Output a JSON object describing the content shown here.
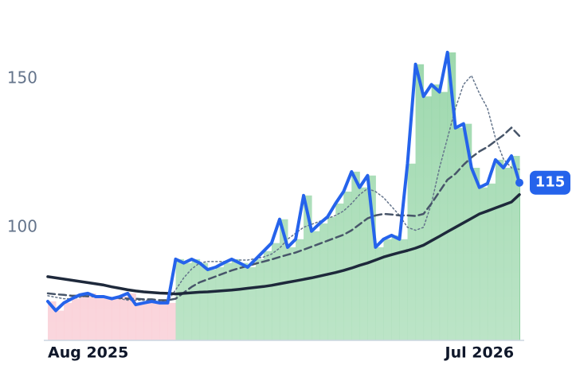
{
  "chart_data": {
    "type": "line",
    "categories": [
      "Aug 2025",
      null,
      null,
      null,
      null,
      null,
      null,
      null,
      null,
      null,
      null,
      null,
      null,
      null,
      null,
      null,
      null,
      null,
      null,
      null,
      null,
      null,
      null,
      null,
      null,
      null,
      null,
      null,
      null,
      null,
      null,
      null,
      null,
      null,
      null,
      null,
      null,
      null,
      null,
      null,
      null,
      null,
      null,
      null,
      null,
      null,
      null,
      null,
      null,
      null,
      null,
      null,
      null,
      null,
      "Jul 2026",
      null,
      null,
      null,
      null,
      null
    ],
    "series": [
      {
        "color": "#2563eb",
        "style": "solid",
        "width": 4,
        "values": [
          75.1,
          72,
          74.6,
          76,
          77.3,
          77.8,
          76.7,
          76.7,
          76,
          76.7,
          77.8,
          74,
          74.6,
          75.1,
          74.6,
          74.6,
          89.3,
          88,
          89.3,
          88,
          85.8,
          86.6,
          88,
          89.3,
          88,
          86.6,
          89.3,
          92,
          94.7,
          102.7,
          93.3,
          96,
          110.7,
          98.7,
          101.3,
          103.5,
          108,
          112,
          118.7,
          113.4,
          117.4,
          93.3,
          96,
          97.3,
          96,
          121.4,
          154.8,
          144,
          148,
          145.5,
          158.8,
          133.4,
          134.8,
          120,
          113.4,
          114.7,
          122.7,
          120,
          124,
          115
        ]
      },
      {
        "color": "#1e293b",
        "style": "solid",
        "width": 3.5,
        "values": [
          83.4,
          83,
          82.6,
          82.2,
          81.8,
          81.4,
          81,
          80.6,
          80,
          79.5,
          79,
          78.6,
          78.3,
          78.1,
          77.9,
          77.8,
          77.6,
          77.8,
          78,
          78.2,
          78.3,
          78.5,
          78.7,
          78.9,
          79.2,
          79.5,
          79.8,
          80.1,
          80.5,
          81,
          81.5,
          82,
          82.5,
          83,
          83.6,
          84.2,
          84.8,
          85.5,
          86.3,
          87.2,
          88,
          89,
          90,
          90.8,
          91.5,
          92.2,
          93,
          94,
          95.5,
          97,
          98.5,
          100,
          101.5,
          103,
          104.5,
          105.5,
          106.5,
          107.5,
          108.5,
          111
        ]
      },
      {
        "color": "#475569",
        "style": "dashed",
        "width": 2.5,
        "values": [
          77.8,
          77.5,
          77.3,
          77,
          77,
          76.8,
          76.8,
          76.5,
          76.3,
          76.3,
          76,
          76,
          75.8,
          75.8,
          75.5,
          75.5,
          76,
          78,
          80,
          81.5,
          82.5,
          83.5,
          84.5,
          85.5,
          86.3,
          87,
          87.8,
          88.5,
          89.2,
          90,
          90.8,
          91.5,
          92.5,
          93.5,
          94.5,
          95.5,
          96.5,
          97.5,
          99,
          101,
          103,
          104,
          104.5,
          104.3,
          104,
          104,
          103.8,
          104.5,
          108,
          112,
          116,
          118,
          121,
          123.5,
          125.5,
          127,
          129,
          131,
          133.5,
          130.7
        ]
      },
      {
        "color": "#64748b",
        "style": "dotted",
        "width": 1.5,
        "values": [
          77,
          76.5,
          76,
          76,
          76.5,
          77,
          76.8,
          76.5,
          76.3,
          76,
          75.5,
          75.5,
          75.5,
          75.3,
          75,
          75.2,
          79,
          83,
          86,
          88,
          88.5,
          88.5,
          88.5,
          88.8,
          89,
          89,
          89.5,
          90,
          91,
          93,
          96,
          98,
          100,
          101,
          102,
          103,
          104,
          105.5,
          108,
          111,
          113,
          112,
          110,
          107,
          104,
          100,
          99,
          100,
          108,
          120,
          130,
          140,
          148,
          151,
          145,
          140,
          130,
          123,
          120,
          119.5
        ]
      }
    ],
    "area_colors": {
      "up": "#86cf9a",
      "down": "#f7b6c2"
    },
    "ylim": [
      62,
      176.4
    ],
    "yticks": [
      100,
      150
    ],
    "grid": false
  }
}
